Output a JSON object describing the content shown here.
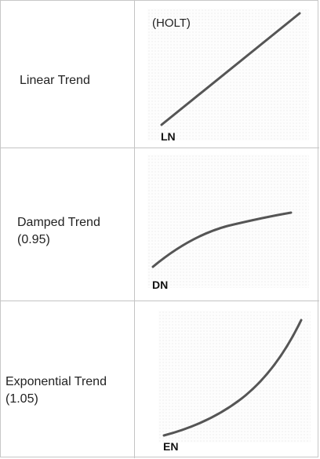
{
  "rows": [
    {
      "label_line1": "Linear Trend",
      "label_line2": "",
      "series": "LN",
      "note": "(HOLT)",
      "shape": "linear"
    },
    {
      "label_line1": "Damped Trend",
      "label_line2": "(0.95)",
      "series": "DN",
      "shape": "damped"
    },
    {
      "label_line1": "Exponential Trend",
      "label_line2": "(1.05)",
      "series": "EN",
      "shape": "exponential"
    }
  ],
  "colors": {
    "curve": "#555555",
    "border": "#c4c4c4"
  }
}
